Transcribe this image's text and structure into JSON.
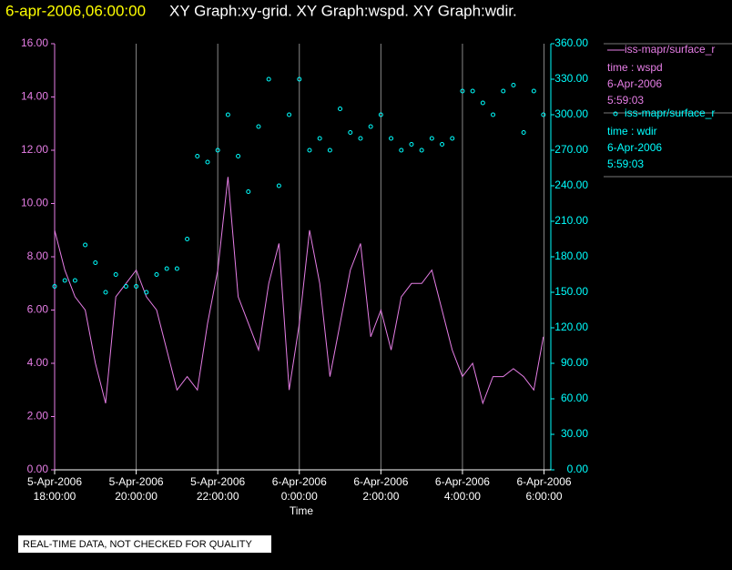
{
  "chart_data": {
    "type": "line-scatter",
    "title_time": "6-apr-2006,06:00:00",
    "title": "XY Graph:xy-grid.  XY Graph:wspd.  XY Graph:wdir.",
    "x_label": "Time",
    "footer": "REAL-TIME DATA, NOT CHECKED FOR QUALITY",
    "grid": true,
    "x": [
      "2006-04-05T18:00:00",
      "2006-04-05T18:15:00",
      "2006-04-05T18:30:00",
      "2006-04-05T18:45:00",
      "2006-04-05T19:00:00",
      "2006-04-05T19:15:00",
      "2006-04-05T19:30:00",
      "2006-04-05T19:45:00",
      "2006-04-05T20:00:00",
      "2006-04-05T20:15:00",
      "2006-04-05T20:30:00",
      "2006-04-05T20:45:00",
      "2006-04-05T21:00:00",
      "2006-04-05T21:15:00",
      "2006-04-05T21:30:00",
      "2006-04-05T21:45:00",
      "2006-04-05T22:00:00",
      "2006-04-05T22:15:00",
      "2006-04-05T22:30:00",
      "2006-04-05T22:45:00",
      "2006-04-05T23:00:00",
      "2006-04-05T23:15:00",
      "2006-04-05T23:30:00",
      "2006-04-05T23:45:00",
      "2006-04-06T00:00:00",
      "2006-04-06T00:15:00",
      "2006-04-06T00:30:00",
      "2006-04-06T00:45:00",
      "2006-04-06T01:00:00",
      "2006-04-06T01:15:00",
      "2006-04-06T01:30:00",
      "2006-04-06T01:45:00",
      "2006-04-06T02:00:00",
      "2006-04-06T02:15:00",
      "2006-04-06T02:30:00",
      "2006-04-06T02:45:00",
      "2006-04-06T03:00:00",
      "2006-04-06T03:15:00",
      "2006-04-06T03:30:00",
      "2006-04-06T03:45:00",
      "2006-04-06T04:00:00",
      "2006-04-06T04:15:00",
      "2006-04-06T04:30:00",
      "2006-04-06T04:45:00",
      "2006-04-06T05:00:00",
      "2006-04-06T05:15:00",
      "2006-04-06T05:30:00",
      "2006-04-06T05:45:00",
      "2006-04-06T05:59:03"
    ],
    "xlim": [
      "2006-04-05T18:00:00",
      "2006-04-06T06:10:00"
    ],
    "xticks": [
      {
        "value": "2006-04-05T18:00:00",
        "label": [
          "5-Apr-2006",
          "18:00:00"
        ]
      },
      {
        "value": "2006-04-05T20:00:00",
        "label": [
          "5-Apr-2006",
          "20:00:00"
        ]
      },
      {
        "value": "2006-04-05T22:00:00",
        "label": [
          "5-Apr-2006",
          "22:00:00"
        ]
      },
      {
        "value": "2006-04-06T00:00:00",
        "label": [
          "6-Apr-2006",
          "0:00:00"
        ]
      },
      {
        "value": "2006-04-06T02:00:00",
        "label": [
          "6-Apr-2006",
          "2:00:00"
        ]
      },
      {
        "value": "2006-04-06T04:00:00",
        "label": [
          "6-Apr-2006",
          "4:00:00"
        ]
      },
      {
        "value": "2006-04-06T06:00:00",
        "label": [
          "6-Apr-2006",
          "6:00:00"
        ]
      }
    ],
    "ylim": [
      0,
      16
    ],
    "yticks": [
      {
        "value": 0,
        "label": "0.00"
      },
      {
        "value": 2,
        "label": "2.00"
      },
      {
        "value": 4,
        "label": "4.00"
      },
      {
        "value": 6,
        "label": "6.00"
      },
      {
        "value": 8,
        "label": "8.00"
      },
      {
        "value": 10,
        "label": "10.00"
      },
      {
        "value": 12,
        "label": "12.00"
      },
      {
        "value": 14,
        "label": "14.00"
      },
      {
        "value": 16,
        "label": "16.00"
      }
    ],
    "y2lim": [
      0,
      360
    ],
    "y2ticks": [
      {
        "value": 0,
        "label": "0.00"
      },
      {
        "value": 30,
        "label": "30.00"
      },
      {
        "value": 60,
        "label": "60.00"
      },
      {
        "value": 90,
        "label": "90.00"
      },
      {
        "value": 120,
        "label": "120.00"
      },
      {
        "value": 150,
        "label": "150.00"
      },
      {
        "value": 180,
        "label": "180.00"
      },
      {
        "value": 210,
        "label": "210.00"
      },
      {
        "value": 240,
        "label": "240.00"
      },
      {
        "value": 270,
        "label": "270.00"
      },
      {
        "value": 300,
        "label": "300.00"
      },
      {
        "value": 330,
        "label": "330.00"
      },
      {
        "value": 360,
        "label": "360.00"
      }
    ],
    "series": [
      {
        "name": "iss-mapr/surface_r",
        "legend_lines": [
          "time : wspd",
          "6-Apr-2006",
          "5:59:03"
        ],
        "color": "#e67ee6",
        "mark": "line",
        "axis": "y",
        "values": [
          9.0,
          7.5,
          6.5,
          6.0,
          4.0,
          2.5,
          6.5,
          7.0,
          7.5,
          6.5,
          6.0,
          4.5,
          3.0,
          3.5,
          3.0,
          5.5,
          7.5,
          11.0,
          6.5,
          5.5,
          4.5,
          7.0,
          8.5,
          3.0,
          5.5,
          9.0,
          7.0,
          3.5,
          5.5,
          7.5,
          8.5,
          5.0,
          6.0,
          4.5,
          6.5,
          7.0,
          7.0,
          7.5,
          6.0,
          4.5,
          3.5,
          4.0,
          2.5,
          3.5,
          3.5,
          3.8,
          3.5,
          3.0,
          5.0
        ]
      },
      {
        "name": "iss-mapr/surface_r",
        "legend_lines": [
          "time : wdir",
          "6-Apr-2006",
          "5:59:03"
        ],
        "color": "#00ffff",
        "mark": "scatter",
        "axis": "y2",
        "values": [
          155,
          160,
          160,
          190,
          175,
          150,
          165,
          155,
          155,
          150,
          165,
          170,
          170,
          195,
          265,
          260,
          270,
          300,
          265,
          235,
          290,
          330,
          240,
          300,
          330,
          270,
          280,
          270,
          305,
          285,
          280,
          290,
          300,
          280,
          270,
          275,
          270,
          280,
          275,
          280,
          320,
          320,
          310,
          300,
          320,
          325,
          285,
          320,
          300
        ]
      }
    ]
  }
}
